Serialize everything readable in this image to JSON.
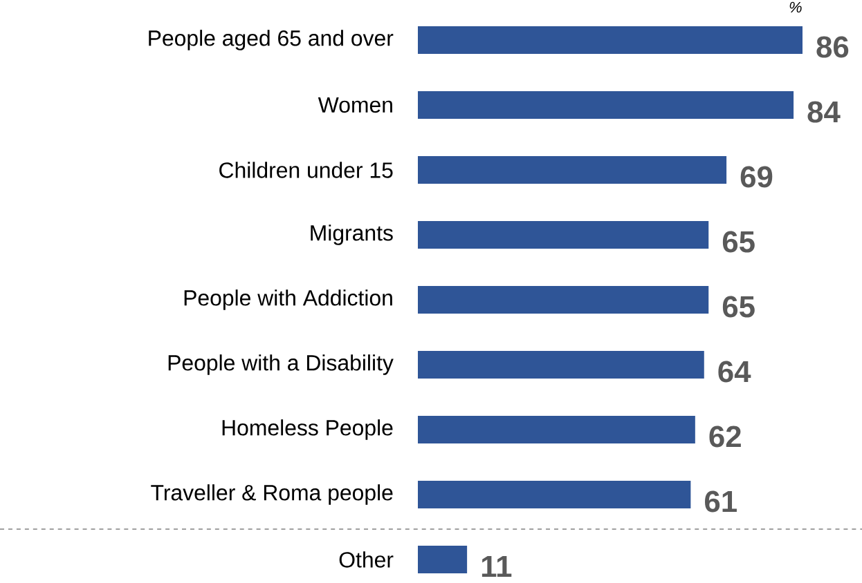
{
  "chart_data": {
    "type": "bar",
    "orientation": "horizontal",
    "categories": [
      "People aged 65 and over",
      "Women",
      "Children under 15",
      "Migrants",
      "People with Addiction",
      "People with a Disability",
      "Homeless People",
      "Traveller & Roma people",
      "Other"
    ],
    "values": [
      86,
      84,
      69,
      65,
      65,
      64,
      62,
      61,
      11
    ],
    "color": "#2f5597",
    "data_labels": true,
    "tick_labels": "y",
    "annotations": [
      "%"
    ]
  }
}
